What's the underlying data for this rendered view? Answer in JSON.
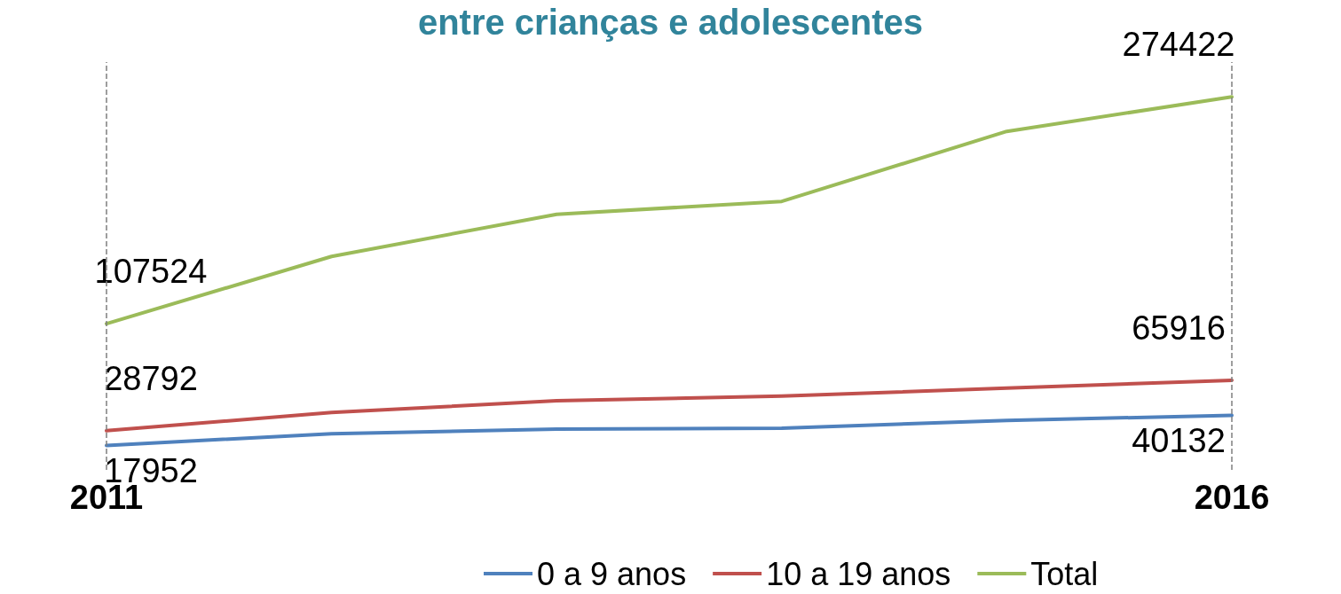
{
  "chart_data": {
    "type": "line",
    "title": "entre crianças e adolescentes",
    "categories": [
      "2011",
      null,
      null,
      null,
      null,
      "2016"
    ],
    "series": [
      {
        "name": "0 a 9 anos",
        "color": "#4f81bd",
        "values": [
          17952,
          26600,
          30000,
          30600,
          36400,
          40132
        ],
        "value_labels": [
          "17952",
          null,
          null,
          null,
          null,
          "40132"
        ]
      },
      {
        "name": "10 a 19 anos",
        "color": "#c0504d",
        "values": [
          28792,
          42200,
          50800,
          54300,
          60100,
          65916
        ],
        "value_labels": [
          "28792",
          null,
          null,
          null,
          null,
          "65916"
        ]
      },
      {
        "name": "Total",
        "color": "#9bbb59",
        "values": [
          107524,
          157000,
          188000,
          197500,
          249000,
          274422
        ],
        "value_labels": [
          "107524",
          null,
          null,
          null,
          null,
          "274422"
        ]
      }
    ],
    "ref_lines": [
      {
        "axis": "x",
        "value": "2011",
        "color": "#7f7f7f",
        "line_style": "dashed"
      },
      {
        "axis": "x",
        "value": "2016",
        "color": "#7f7f7f",
        "line_style": "dashed"
      }
    ],
    "marker": "none",
    "line_style": "solid",
    "grid": false,
    "legend": "bottom"
  }
}
